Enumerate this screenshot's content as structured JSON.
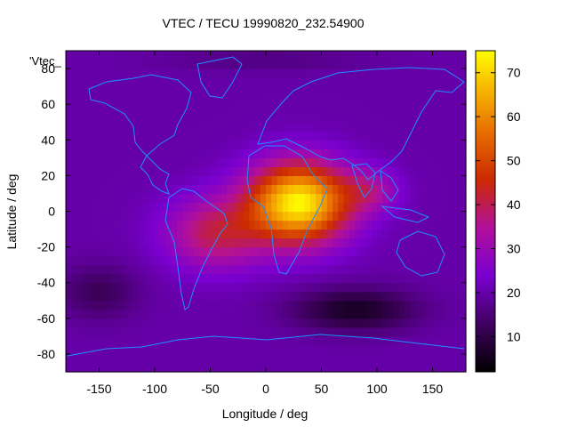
{
  "chart_data": {
    "type": "heatmap",
    "title": "VTEC / TECU 19990820_232.54900",
    "xlabel": "Longitude / deg",
    "ylabel": "Latitude / deg",
    "series_key": "'Vtec_",
    "xlim": [
      -180,
      180
    ],
    "ylim": [
      -90,
      90
    ],
    "x_ticks": [
      -150,
      -100,
      -50,
      0,
      50,
      100,
      150
    ],
    "y_ticks": [
      -80,
      -60,
      -40,
      -20,
      0,
      20,
      40,
      60,
      80
    ],
    "colorbar": {
      "range": [
        2,
        75
      ],
      "ticks": [
        10,
        20,
        30,
        40,
        50,
        60,
        70
      ]
    },
    "grid": false,
    "field_model": {
      "background_tecu": 20,
      "peaks": [
        {
          "lon": 30,
          "lat": 5,
          "value": 54,
          "lon_sigma": 45,
          "lat_sigma": 22
        },
        {
          "lon": -45,
          "lat": -12,
          "value": 20,
          "lon_sigma": 45,
          "lat_sigma": 20
        },
        {
          "lon": 95,
          "lat": 12,
          "value": 12,
          "lon_sigma": 25,
          "lat_sigma": 12
        }
      ],
      "troughs": [
        {
          "lon": 80,
          "lat": -55,
          "value": -14,
          "lon_sigma": 55,
          "lat_sigma": 12
        },
        {
          "lon": -150,
          "lat": -45,
          "value": -8,
          "lon_sigma": 35,
          "lat_sigma": 15
        },
        {
          "lon": 0,
          "lat": 85,
          "value": -4,
          "lon_sigma": 90,
          "lat_sigma": 6
        }
      ]
    },
    "coastline_color": "#1e90ff"
  }
}
